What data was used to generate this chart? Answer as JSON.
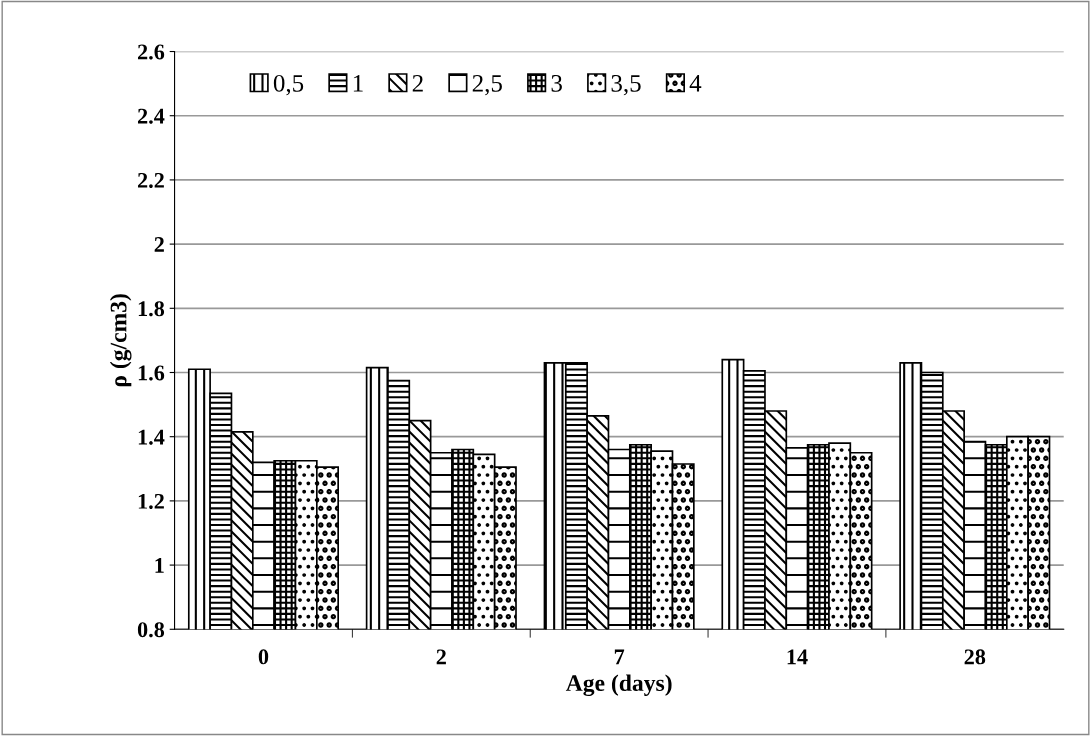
{
  "chart_data": {
    "type": "bar",
    "xlabel": "Age (days)",
    "ylabel": "ρ (g/cm3)",
    "categories": [
      "0",
      "2",
      "7",
      "14",
      "28"
    ],
    "series": [
      {
        "name": "0,5",
        "color": "#000000",
        "values": [
          1.61,
          1.615,
          1.63,
          1.64,
          1.63
        ]
      },
      {
        "name": "1",
        "color": "#000000",
        "values": [
          1.535,
          1.575,
          1.63,
          1.605,
          1.6
        ]
      },
      {
        "name": "2",
        "color": "#000000",
        "values": [
          1.415,
          1.45,
          1.465,
          1.48,
          1.48
        ]
      },
      {
        "name": "2,5",
        "color": "#000000",
        "values": [
          1.32,
          1.35,
          1.36,
          1.365,
          1.385
        ]
      },
      {
        "name": "3",
        "color": "#000000",
        "values": [
          1.325,
          1.36,
          1.375,
          1.375,
          1.375
        ]
      },
      {
        "name": "3,5",
        "color": "#000000",
        "values": [
          1.325,
          1.345,
          1.355,
          1.38,
          1.4
        ]
      },
      {
        "name": "4",
        "color": "#000000",
        "values": [
          1.305,
          1.305,
          1.315,
          1.35,
          1.4
        ]
      }
    ],
    "ylim": [
      0.8,
      2.6
    ],
    "yticks": [
      0.8,
      1,
      1.2,
      1.4,
      1.6,
      1.8,
      2,
      2.2,
      2.4,
      2.6
    ],
    "grid": "y",
    "legend": "top left"
  }
}
